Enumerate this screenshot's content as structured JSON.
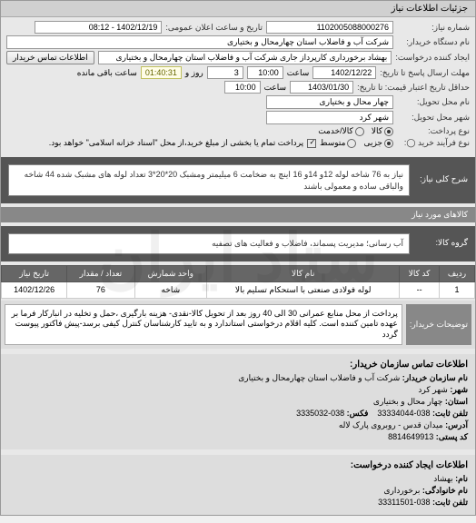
{
  "header": {
    "title": "جزئیات اطلاعات نیاز"
  },
  "form": {
    "niaz_number_label": "شماره نیاز:",
    "niaz_number": "1102005088000276",
    "announce_date_label": "تاریخ و ساعت اعلان عمومی:",
    "announce_date": "1402/12/19 - 08:12",
    "device_name_label": "نام دستگاه خریدار:",
    "device_name": "شرکت آب و فاضلاب استان چهارمحال و بختیاری",
    "creator_label": "ایجاد کننده درخواست:",
    "creator": "بهشاد برخورداری کارپرداز جاری شرکت آب و فاضلاب استان چهارمحال و بختیاری",
    "contact_btn": "اطلاعات تماس خریدار",
    "deadline_label": "مهلت ارسال پاسخ تا تاریخ:",
    "deadline_date": "1402/12/22",
    "deadline_hour_label": "ساعت",
    "deadline_hour": "10:00",
    "days_label": "روز و",
    "days": "3",
    "countdown": "01:40:31",
    "remaining": "ساعت باقی مانده",
    "validity_label": "حداقل تاریخ اعتبار قیمت: تا تاریخ:",
    "validity_date": "1403/01/30",
    "validity_hour": "10:00",
    "delivery_place_label": "نام محل تحویل:",
    "delivery_place": "چهار محال و بختیاری",
    "delivery_city_label": "شهر محل تحویل:",
    "delivery_city": "شهر کرد",
    "payment_type_label": "نوع پرداخت:",
    "payment_options": [
      "کالا",
      "کالا/خدمت"
    ],
    "payment_selected": 0,
    "process_type_label": "نوع فرآیند خرید ◯:",
    "process_options": [
      "جزیی",
      "متوسط"
    ],
    "process_selected": 0,
    "payment_note": "پرداخت تمام یا بخشی از مبلغ خرید،از محل \"اسناد خزانه اسلامی\" خواهد بود."
  },
  "description": {
    "label": "شرح کلی نیاز:",
    "text": "نیاز به 76 شاخه لوله 12و 14و 16 اینچ به ضخامت 6 میلیمتر ومشبک 20*20*3 تعداد لوله های مشبک شده 44 شاخه والباقی ساده و معمولی باشند"
  },
  "group": {
    "label": "گروه کالا:",
    "text": "آب رسانی؛ مدیریت پسماند، فاضلاب و فعالیت های تصفیه"
  },
  "table": {
    "headers": [
      "ردیف",
      "کد کالا",
      "نام کالا",
      "واحد شمارش",
      "تعداد / مقدار",
      "تاریخ نیاز"
    ],
    "rows": [
      [
        "1",
        "--",
        "لوله فولادی صنعتی با استحکام تسلیم بالا",
        "شاخه",
        "76",
        "1402/12/26"
      ]
    ]
  },
  "buyer_desc": {
    "label": "توضیحات خریدار:",
    "text": "پرداخت از محل منابع عمرانی 30 الی 40 روز بعد از تحویل کالا-نقدی- هزینه بارگیری ،حمل و تخلیه در انبارکار فرما بر عهده تامین کننده است. کلیه اقلام درخواستی استاندارد و به تایید کارشناسان کنترل کیفی برسد-پیش فاکتور پیوست گردد"
  },
  "contact_org": {
    "title": "اطلاعات تماس سازمان خریدار:",
    "org_label": "نام سازمان خریدار:",
    "org": "شرکت آب و فاضلاب استان چهارمحال و بختیاری",
    "city_label": "شهر:",
    "city": "شهر کرد",
    "province_label": "استان:",
    "province": "چهار محال و بختیاری",
    "phone_label": "تلفن ثابت:",
    "phone": "038-33334044",
    "fax_label": "فکس:",
    "fax": "038-3335032",
    "address_label": "آدرس:",
    "address": "میدان قدس - روبروی پارک لاله",
    "postal_label": "کد پستی:",
    "postal": "8814649913"
  },
  "contact_creator": {
    "title": "اطلاعات ایجاد کننده درخواست:",
    "name_label": "نام:",
    "name": "بهشاد",
    "family_label": "نام خانوادگی:",
    "family": "برخورداری",
    "phone_label": "تلفن ثابت:",
    "phone": "038-33311501"
  },
  "colors": {
    "header_bg": "#d0d0d0",
    "dark_bg": "#555555",
    "gray_bar": "#888888",
    "field_bg": "#ffffff",
    "countdown_bg": "#fffde7"
  }
}
